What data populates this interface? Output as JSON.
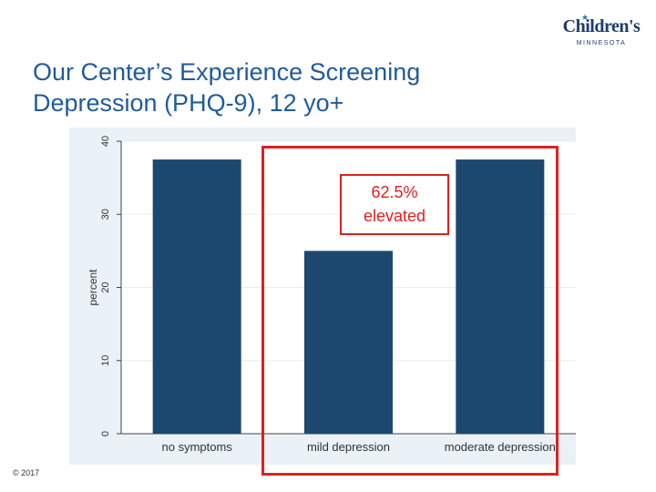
{
  "slide": {
    "title_lines": [
      "Our Center’s Experience Screening",
      "Depression (PHQ-9), 12 yo+"
    ],
    "footer": "© 2017"
  },
  "logo": {
    "name": "Children's",
    "sub": "MINNESOTA",
    "star": "★"
  },
  "chart_data": {
    "type": "bar",
    "categories": [
      "no symptoms",
      "mild depression",
      "moderate depression"
    ],
    "values": [
      37.5,
      25,
      37.5
    ],
    "ylabel": "percent",
    "xlabel": "",
    "ylim": [
      0,
      40
    ],
    "yticks": [
      0,
      10,
      20,
      30,
      40
    ],
    "bar_color": "#1c4870",
    "plot_background": "#eaf1f7",
    "grid": true
  },
  "annotation": {
    "line1": "62.5%",
    "line2": "elevated",
    "color": "#e02020"
  }
}
